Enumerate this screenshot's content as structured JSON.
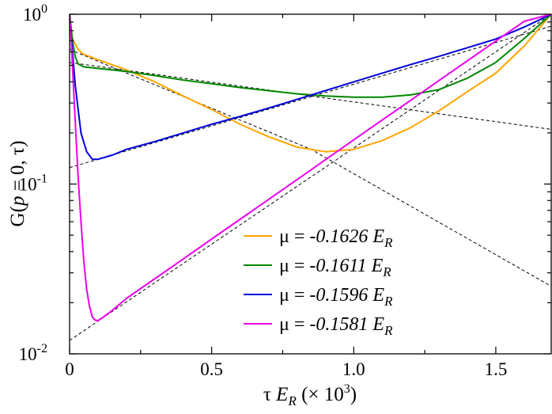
{
  "chart_data": {
    "type": "line",
    "title": "",
    "xlabel": {
      "pre": "τ ",
      "var": "E",
      "sub": "R",
      "post": " (× 10",
      "sup": "3",
      "end": ")"
    },
    "ylabel": {
      "func": "G(",
      "var": "p",
      "mid": " = 0, τ)"
    },
    "xlim": [
      0,
      1.695
    ],
    "ylim": [
      0.01,
      1.0
    ],
    "yscale": "log",
    "grid": false,
    "legend_placement": "bottom-center",
    "x_ticks": [
      {
        "value": 0,
        "label": "0"
      },
      {
        "value": 0.5,
        "label": "0.5"
      },
      {
        "value": 1.0,
        "label": "1.0"
      },
      {
        "value": 1.5,
        "label": "1.5"
      }
    ],
    "y_ticks": [
      {
        "value": 1.0,
        "base": "10",
        "exp": "0"
      },
      {
        "value": 0.1,
        "base": "10",
        "exp": "-1"
      },
      {
        "value": 0.01,
        "base": "10",
        "exp": "-2"
      }
    ],
    "series": [
      {
        "name_pre": "μ = ",
        "name_value": "-0.1626",
        "name_var": "E",
        "name_sub": "R",
        "color": "#FFA500",
        "x": [
          0.0,
          0.01,
          0.03,
          0.05,
          0.1,
          0.2,
          0.3,
          0.4,
          0.5,
          0.6,
          0.7,
          0.8,
          0.9,
          1.0,
          1.1,
          1.2,
          1.3,
          1.4,
          1.5,
          1.6,
          1.695
        ],
        "y": [
          1.0,
          0.72,
          0.62,
          0.58,
          0.54,
          0.47,
          0.4,
          0.33,
          0.275,
          0.225,
          0.19,
          0.165,
          0.155,
          0.16,
          0.18,
          0.215,
          0.27,
          0.35,
          0.45,
          0.65,
          1.0
        ]
      },
      {
        "name_pre": "μ = ",
        "name_value": "-0.1611",
        "name_var": "E",
        "name_sub": "R",
        "color": "#008800",
        "x": [
          0.0,
          0.01,
          0.02,
          0.03,
          0.05,
          0.1,
          0.2,
          0.3,
          0.4,
          0.5,
          0.6,
          0.7,
          0.8,
          0.9,
          1.0,
          1.1,
          1.2,
          1.3,
          1.4,
          1.5,
          1.6,
          1.695
        ],
        "y": [
          1.0,
          0.7,
          0.56,
          0.51,
          0.49,
          0.48,
          0.46,
          0.435,
          0.41,
          0.39,
          0.37,
          0.355,
          0.34,
          0.33,
          0.325,
          0.325,
          0.335,
          0.36,
          0.42,
          0.52,
          0.72,
          1.0
        ]
      },
      {
        "name_pre": "μ = ",
        "name_value": "-0.1596",
        "name_var": "E",
        "name_sub": "R",
        "color": "#0000DD",
        "x": [
          0.0,
          0.01,
          0.02,
          0.04,
          0.06,
          0.08,
          0.1,
          0.15,
          0.2,
          0.3,
          0.4,
          0.5,
          0.6,
          0.7,
          0.8,
          0.9,
          1.0,
          1.1,
          1.2,
          1.3,
          1.4,
          1.5,
          1.6,
          1.695
        ],
        "y": [
          1.0,
          0.6,
          0.38,
          0.2,
          0.155,
          0.14,
          0.14,
          0.148,
          0.16,
          0.178,
          0.2,
          0.225,
          0.25,
          0.28,
          0.315,
          0.355,
          0.4,
          0.45,
          0.505,
          0.565,
          0.635,
          0.715,
          0.84,
          1.0
        ]
      },
      {
        "name_pre": "μ = ",
        "name_value": "-0.1581",
        "name_var": "E",
        "name_sub": "R",
        "color": "#EE00EE",
        "x": [
          0.0,
          0.005,
          0.01,
          0.02,
          0.03,
          0.04,
          0.05,
          0.06,
          0.07,
          0.08,
          0.09,
          0.1,
          0.12,
          0.15,
          0.2,
          0.3,
          0.4,
          0.5,
          0.6,
          0.7,
          0.8,
          0.9,
          1.0,
          1.1,
          1.2,
          1.3,
          1.4,
          1.5,
          1.6,
          1.695
        ],
        "y": [
          1.0,
          0.75,
          0.5,
          0.23,
          0.11,
          0.06,
          0.035,
          0.024,
          0.019,
          0.0165,
          0.0158,
          0.0157,
          0.0165,
          0.018,
          0.0212,
          0.0277,
          0.0362,
          0.0474,
          0.062,
          0.081,
          0.106,
          0.139,
          0.182,
          0.238,
          0.311,
          0.407,
          0.532,
          0.695,
          0.909,
          1.0
        ]
      }
    ],
    "fits": [
      {
        "x": [
          0.0,
          1.695
        ],
        "y": [
          0.012,
          1.0
        ]
      },
      {
        "x": [
          0.0,
          1.695
        ],
        "y": [
          0.125,
          0.85
        ]
      },
      {
        "x": [
          0.0,
          1.695
        ],
        "y": [
          0.52,
          0.21
        ]
      },
      {
        "x": [
          0.0,
          0.85,
          1.695
        ],
        "y": [
          0.62,
          0.16,
          0.025
        ]
      }
    ]
  }
}
